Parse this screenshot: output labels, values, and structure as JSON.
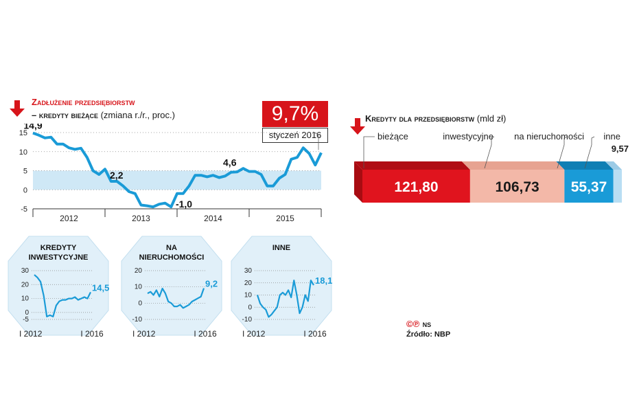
{
  "main_chart": {
    "title_line1": "Zadłużenie przedsiębiorstw",
    "title_line2_prefix": "– kredyty bieżące",
    "title_line2_unit": " (zmiana r./r., proc.)",
    "callout_value": "9,7%",
    "callout_label": "styczeń 2016",
    "accent_red": "#d7141a",
    "line_blue": "#1a9bd7",
    "band_blue": "#cfe8f6"
  },
  "bar_chart": {
    "title_bold": "Kredyty dla przedsiębiorstw",
    "title_unit": " (mld zł)",
    "segment_colors": [
      "#e0141e",
      "#f3b8a8",
      "#1a9bd7",
      "#b9def3"
    ]
  },
  "footer": {
    "copyright": "©℗",
    "author": "NS",
    "source": "Źródło: NBP"
  },
  "chart_data": [
    {
      "type": "line",
      "xlabel": "",
      "ylabel": "",
      "ylim": [
        -5,
        15
      ],
      "yticks": [
        "15",
        "10",
        "5",
        "0",
        "-5"
      ],
      "year_labels": [
        "2012",
        "2013",
        "2014",
        "2015"
      ],
      "annotations": [
        "14,9",
        "2,2",
        "-1,0",
        "4,6"
      ],
      "series": [
        {
          "values": [
            14.9,
            14.3,
            13.6,
            13.8,
            12.0,
            12.0,
            11.0,
            10.6,
            10.9,
            8.5,
            5.0,
            4.0,
            5.4,
            2.2,
            2.2,
            1.0,
            -0.5,
            -1.0,
            -4.0,
            -4.2,
            -4.5,
            -3.8,
            -3.5,
            -4.5,
            -1.0,
            -1.0,
            1.0,
            3.8,
            3.8,
            3.4,
            3.8,
            3.2,
            3.6,
            4.6,
            4.7,
            5.6,
            4.8,
            4.8,
            4.0,
            1.0,
            1.0,
            3.0,
            4.0,
            8.0,
            8.5,
            11.0,
            9.5,
            6.5,
            9.7
          ]
        }
      ]
    },
    {
      "type": "line",
      "title": "KREDYTY INWESTYCYJNE",
      "ylim": [
        -5,
        30
      ],
      "yticks": [
        "30",
        "20",
        "10",
        "0",
        "-5"
      ],
      "x_labels": [
        "I 2012",
        "I 2016"
      ],
      "end_label": "14,5",
      "series": [
        {
          "values": [
            27,
            25,
            22,
            12,
            -3,
            -2,
            -3,
            5,
            8,
            9,
            9,
            10,
            10,
            11,
            9,
            10,
            11,
            10,
            14.5
          ]
        }
      ]
    },
    {
      "type": "line",
      "title": "NA NIERUCHOMOŚCI",
      "ylim": [
        -10,
        20
      ],
      "yticks": [
        "20",
        "10",
        "0",
        "-10"
      ],
      "x_labels": [
        "I 2012",
        "I 2016"
      ],
      "end_label": "9,2",
      "series": [
        {
          "values": [
            6,
            7,
            5,
            8,
            4,
            9,
            6,
            1,
            0,
            -2,
            -2,
            -1,
            -3,
            -2,
            -1,
            1,
            2,
            3,
            4,
            9.2
          ]
        }
      ]
    },
    {
      "type": "line",
      "title": "INNE",
      "ylim": [
        -10,
        30
      ],
      "yticks": [
        "30",
        "20",
        "10",
        "0",
        "-10"
      ],
      "x_labels": [
        "I 2012",
        "I 2016"
      ],
      "end_label": "18,1",
      "series": [
        {
          "values": [
            10,
            3,
            0,
            -2,
            -8,
            -6,
            -3,
            0,
            10,
            12,
            10,
            14,
            8,
            22,
            10,
            -5,
            0,
            10,
            5,
            22,
            18.1
          ]
        }
      ]
    },
    {
      "type": "bar",
      "categories": [
        "bieżące",
        "inwestycyjne",
        "na nieruchomości",
        "inne"
      ],
      "values": [
        121.8,
        106.73,
        55.37,
        9.57
      ],
      "labels": [
        "121,80",
        "106,73",
        "55,37",
        "9,57"
      ]
    }
  ]
}
